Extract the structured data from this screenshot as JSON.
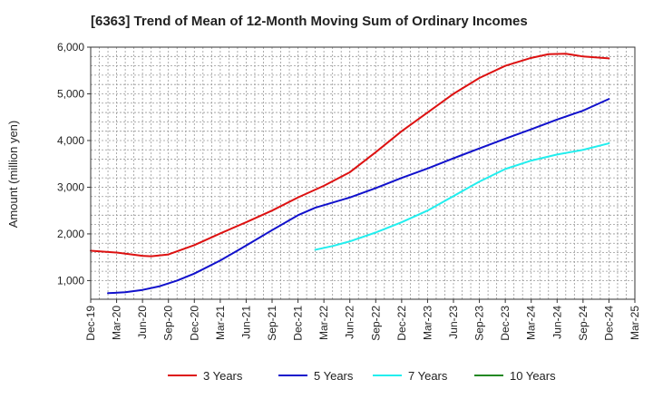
{
  "chart_data": {
    "type": "line",
    "title": "[6363]  Trend of Mean of 12-Month Moving Sum of Ordinary Incomes",
    "xlabel": "",
    "ylabel": "Amount (million yen)",
    "ylim": [
      600,
      6000
    ],
    "yticks": [
      1000,
      2000,
      3000,
      4000,
      5000,
      6000
    ],
    "ytick_labels": [
      "1,000",
      "2,000",
      "3,000",
      "4,000",
      "5,000",
      "6,000"
    ],
    "xticks": [
      "Dec-19",
      "Mar-20",
      "Jun-20",
      "Sep-20",
      "Dec-20",
      "Mar-21",
      "Jun-21",
      "Sep-21",
      "Dec-21",
      "Mar-22",
      "Jun-22",
      "Sep-22",
      "Dec-22",
      "Mar-23",
      "Jun-23",
      "Sep-23",
      "Dec-23",
      "Mar-24",
      "Jun-24",
      "Sep-24",
      "Dec-24",
      "Mar-25"
    ],
    "x_range": [
      0,
      63
    ],
    "grid": true,
    "legend_position": "bottom",
    "series": [
      {
        "name": "3 Years",
        "color": "#dd1111",
        "points": [
          [
            0,
            1640
          ],
          [
            3,
            1600
          ],
          [
            6,
            1530
          ],
          [
            7,
            1520
          ],
          [
            9,
            1560
          ],
          [
            12,
            1760
          ],
          [
            15,
            2010
          ],
          [
            18,
            2250
          ],
          [
            21,
            2500
          ],
          [
            24,
            2780
          ],
          [
            27,
            3030
          ],
          [
            30,
            3320
          ],
          [
            33,
            3750
          ],
          [
            36,
            4200
          ],
          [
            39,
            4600
          ],
          [
            42,
            5000
          ],
          [
            45,
            5340
          ],
          [
            48,
            5600
          ],
          [
            51,
            5770
          ],
          [
            53,
            5850
          ],
          [
            55,
            5860
          ],
          [
            57,
            5800
          ],
          [
            60,
            5760
          ]
        ]
      },
      {
        "name": "5 Years",
        "color": "#1111cc",
        "points": [
          [
            2,
            730
          ],
          [
            4,
            750
          ],
          [
            6,
            800
          ],
          [
            8,
            880
          ],
          [
            10,
            1000
          ],
          [
            12,
            1150
          ],
          [
            15,
            1430
          ],
          [
            18,
            1750
          ],
          [
            21,
            2080
          ],
          [
            24,
            2400
          ],
          [
            26,
            2560
          ],
          [
            30,
            2780
          ],
          [
            33,
            2980
          ],
          [
            36,
            3200
          ],
          [
            39,
            3400
          ],
          [
            42,
            3620
          ],
          [
            45,
            3830
          ],
          [
            48,
            4040
          ],
          [
            51,
            4240
          ],
          [
            54,
            4450
          ],
          [
            57,
            4640
          ],
          [
            60,
            4890
          ]
        ]
      },
      {
        "name": "7 Years",
        "color": "#22eeee",
        "points": [
          [
            26,
            1660
          ],
          [
            28,
            1740
          ],
          [
            30,
            1840
          ],
          [
            33,
            2030
          ],
          [
            36,
            2250
          ],
          [
            39,
            2500
          ],
          [
            42,
            2810
          ],
          [
            45,
            3120
          ],
          [
            48,
            3390
          ],
          [
            51,
            3570
          ],
          [
            54,
            3700
          ],
          [
            57,
            3800
          ],
          [
            60,
            3940
          ]
        ]
      },
      {
        "name": "10 Years",
        "color": "#228822",
        "points": []
      }
    ]
  }
}
